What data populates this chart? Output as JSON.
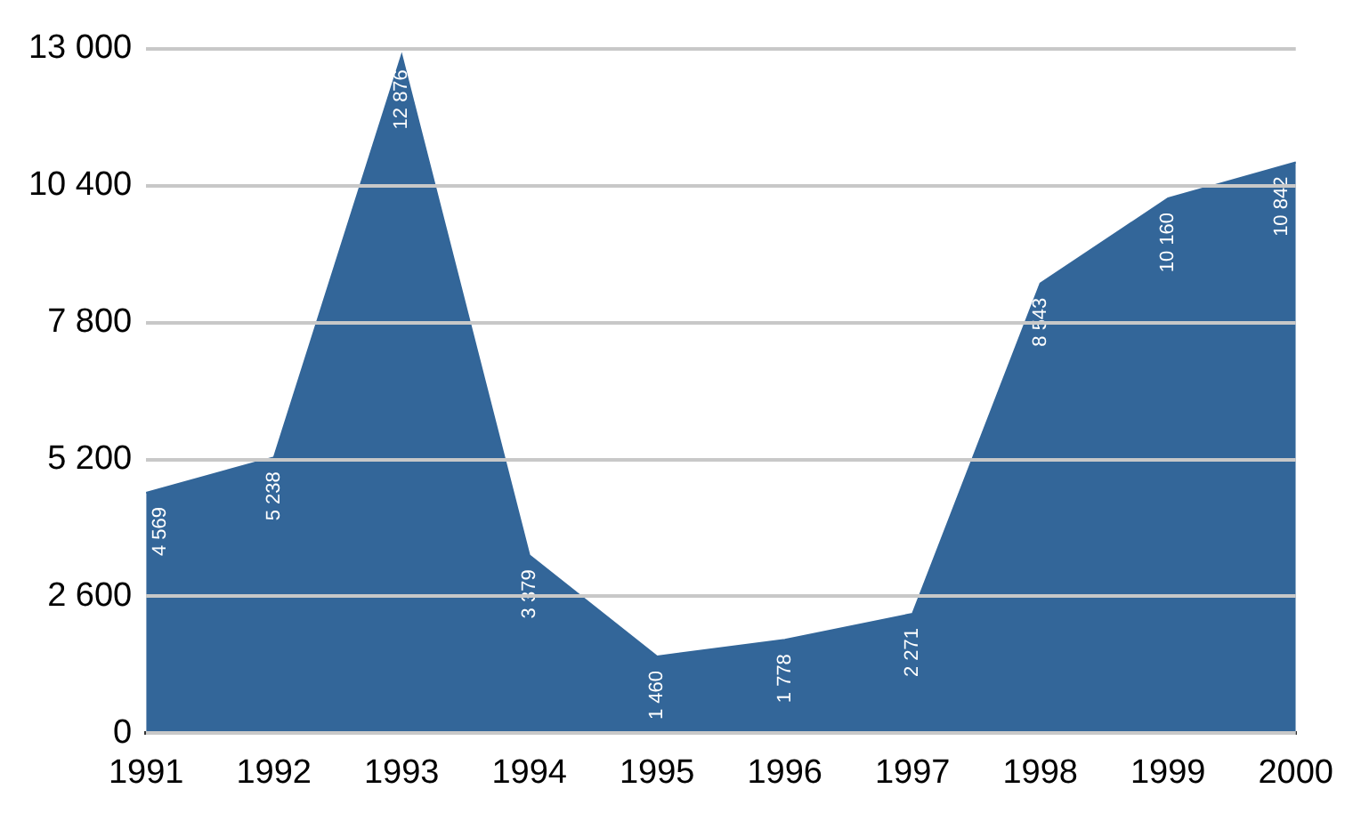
{
  "chart_data": {
    "type": "area",
    "categories": [
      "1991",
      "1992",
      "1993",
      "1994",
      "1995",
      "1996",
      "1997",
      "1998",
      "1999",
      "2000"
    ],
    "values": [
      4569,
      5238,
      12876,
      3379,
      1460,
      1778,
      2271,
      8543,
      10160,
      10842
    ],
    "value_labels": [
      "4 569",
      "5 238",
      "12 876",
      "3 379",
      "1 460",
      "1 778",
      "2 271",
      "8 543",
      "10 160",
      "10 842"
    ],
    "color": "#336699",
    "ylim": [
      0,
      13000
    ],
    "yticks": [
      0,
      {
        "value": 2600,
        "label": "2 600"
      },
      {
        "value": 5200,
        "label": "5 200"
      },
      {
        "value": 7800,
        "label": "7 800"
      },
      {
        "value": 10400,
        "label": "10 400"
      },
      {
        "value": 13000,
        "label": "13 000"
      }
    ],
    "grid": "y"
  }
}
